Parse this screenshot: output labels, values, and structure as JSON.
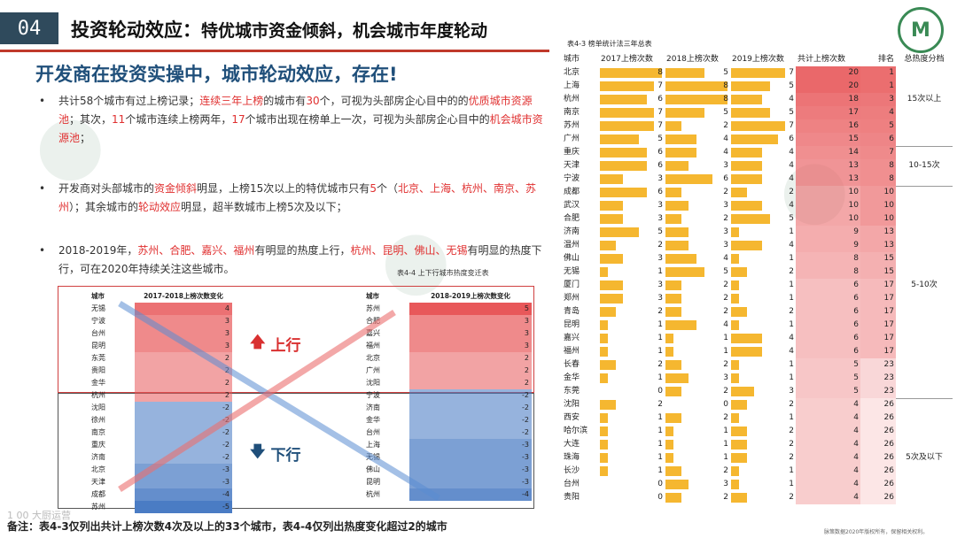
{
  "header": {
    "page_num": "04",
    "title_main": "投资轮动效应：",
    "title_rest": "特优城市资金倾斜，机会城市年度轮动"
  },
  "subtitle": "开发商在投资实操中，城市轮动效应，存在!",
  "bullets": {
    "b1": [
      {
        "t": "共计58个城市有过上榜记录；",
        "red": false
      },
      {
        "t": "连续三年上榜",
        "red": true
      },
      {
        "t": "的城市有",
        "red": false
      },
      {
        "t": "30",
        "red": true
      },
      {
        "t": "个，可视为头部房企心目中的的",
        "red": false
      },
      {
        "t": "优质城市资源池",
        "red": true
      },
      {
        "t": "；其次，",
        "red": false
      },
      {
        "t": "11",
        "red": true
      },
      {
        "t": "个城市连续上榜两年，",
        "red": false
      },
      {
        "t": "17",
        "red": true
      },
      {
        "t": "个城市出现在榜单上一次，可视为头部房企心目中的",
        "red": false
      },
      {
        "t": "机会城市资源池",
        "red": true
      },
      {
        "t": "；",
        "red": false
      }
    ],
    "b2": [
      {
        "t": "开发商对头部城市的",
        "red": false
      },
      {
        "t": "资金倾斜",
        "red": true
      },
      {
        "t": "明显，上榜15次以上的特优城市只有",
        "red": false
      },
      {
        "t": "5",
        "red": true
      },
      {
        "t": "个（",
        "red": false
      },
      {
        "t": "北京、上海、杭州、南京、苏州",
        "red": true
      },
      {
        "t": "）；其余城市的",
        "red": false
      },
      {
        "t": "轮动效应",
        "red": true
      },
      {
        "t": "明显，超半数城市上榜5次及以下；",
        "red": false
      }
    ],
    "b3": [
      {
        "t": "2018-2019年，",
        "red": false
      },
      {
        "t": "苏州、合肥、嘉兴、福州",
        "red": true
      },
      {
        "t": "有明显的热度上行，",
        "red": false
      },
      {
        "t": "杭州、昆明、佛山、无锡",
        "red": true
      },
      {
        "t": "有明显的热度下行，可在2020年持续关注这些城市。",
        "red": false
      }
    ]
  },
  "mini_caption": "表4-4  上下行城市热度变迁表",
  "left_table": {
    "h_city": "城市",
    "h_val": "2017-2018上榜次数变化",
    "rows": [
      [
        "无锡",
        "4"
      ],
      [
        "宁波",
        "3"
      ],
      [
        "台州",
        "3"
      ],
      [
        "昆明",
        "3"
      ],
      [
        "东莞",
        "2"
      ],
      [
        "贵阳",
        "2"
      ],
      [
        "金华",
        "2"
      ],
      [
        "杭州",
        "2"
      ],
      [
        "沈阳",
        "-2"
      ],
      [
        "徐州",
        "-2"
      ],
      [
        "南京",
        "-2"
      ],
      [
        "重庆",
        "-2"
      ],
      [
        "济南",
        "-2"
      ],
      [
        "北京",
        "-3"
      ],
      [
        "天津",
        "-3"
      ],
      [
        "成都",
        "-4"
      ],
      [
        "苏州",
        "-5"
      ]
    ]
  },
  "right_table": {
    "h_city": "城市",
    "h_val": "2018-2019上榜次数变化",
    "rows": [
      [
        "苏州",
        "5"
      ],
      [
        "合肥",
        "3"
      ],
      [
        "嘉兴",
        "3"
      ],
      [
        "福州",
        "3"
      ],
      [
        "北京",
        "2"
      ],
      [
        "广州",
        "2"
      ],
      [
        "沈阳",
        "2"
      ],
      [
        "宁波",
        "-2"
      ],
      [
        "济南",
        "-2"
      ],
      [
        "金华",
        "-2"
      ],
      [
        "台州",
        "-2"
      ],
      [
        "上海",
        "-3"
      ],
      [
        "无锡",
        "-3"
      ],
      [
        "佛山",
        "-3"
      ],
      [
        "昆明",
        "-3"
      ],
      [
        "杭州",
        "-4"
      ]
    ]
  },
  "labels": {
    "up": "上行",
    "down": "下行"
  },
  "big_caption": "表4-3  榜单统计法三年总表",
  "big_table": {
    "headers": [
      "城市",
      "2017上榜次数",
      "2018上榜次数",
      "2019上榜次数",
      "共计上榜次数",
      "排名",
      "总热度分档"
    ],
    "rows": [
      [
        "北京",
        8,
        5,
        7,
        20,
        1
      ],
      [
        "上海",
        7,
        8,
        5,
        20,
        1
      ],
      [
        "杭州",
        6,
        8,
        4,
        18,
        3
      ],
      [
        "南京",
        7,
        5,
        5,
        17,
        4
      ],
      [
        "苏州",
        7,
        2,
        7,
        16,
        5
      ],
      [
        "广州",
        5,
        4,
        6,
        15,
        6
      ],
      [
        "重庆",
        6,
        4,
        4,
        14,
        7
      ],
      [
        "天津",
        6,
        3,
        4,
        13,
        8
      ],
      [
        "宁波",
        3,
        6,
        4,
        13,
        8
      ],
      [
        "成都",
        6,
        2,
        2,
        10,
        10
      ],
      [
        "武汉",
        3,
        3,
        4,
        10,
        10
      ],
      [
        "合肥",
        3,
        2,
        5,
        10,
        10
      ],
      [
        "济南",
        5,
        3,
        1,
        9,
        13
      ],
      [
        "温州",
        2,
        3,
        4,
        9,
        13
      ],
      [
        "佛山",
        3,
        4,
        1,
        8,
        15
      ],
      [
        "无锡",
        1,
        5,
        2,
        8,
        15
      ],
      [
        "厦门",
        3,
        2,
        1,
        6,
        17
      ],
      [
        "郑州",
        3,
        2,
        1,
        6,
        17
      ],
      [
        "青岛",
        2,
        2,
        2,
        6,
        17
      ],
      [
        "昆明",
        1,
        4,
        1,
        6,
        17
      ],
      [
        "嘉兴",
        1,
        1,
        4,
        6,
        17
      ],
      [
        "福州",
        1,
        1,
        4,
        6,
        17
      ],
      [
        "长春",
        2,
        2,
        1,
        5,
        23
      ],
      [
        "金华",
        1,
        3,
        1,
        5,
        23
      ],
      [
        "东莞",
        0,
        2,
        3,
        5,
        23
      ],
      [
        "沈阳",
        2,
        0,
        2,
        4,
        26
      ],
      [
        "西安",
        1,
        2,
        1,
        4,
        26
      ],
      [
        "哈尔滨",
        1,
        1,
        2,
        4,
        26
      ],
      [
        "大连",
        1,
        1,
        2,
        4,
        26
      ],
      [
        "珠海",
        1,
        1,
        2,
        4,
        26
      ],
      [
        "长沙",
        1,
        2,
        1,
        4,
        26
      ],
      [
        "台州",
        0,
        3,
        1,
        4,
        26
      ],
      [
        "贵阳",
        0,
        2,
        2,
        4,
        26
      ]
    ],
    "bands": [
      "15次以上",
      "10-15次",
      "5-10次",
      "5次及以下"
    ]
  },
  "footer": {
    "note": "备注：表4-3仅列出共计上榜次数4次及以上的33个城市，表4-4仅列出热度变化超过2的城市",
    "right": "脉策数据2020年版权所有，保留相关权利。",
    "brand": "1 00 大厨运营"
  },
  "colors": {
    "accent_red": "#e03030",
    "title_blue": "#1f4f7a",
    "bar_yellow": "#f5b730",
    "pos_red": "#e8585a",
    "neg_blue": "#4a7cc4"
  }
}
